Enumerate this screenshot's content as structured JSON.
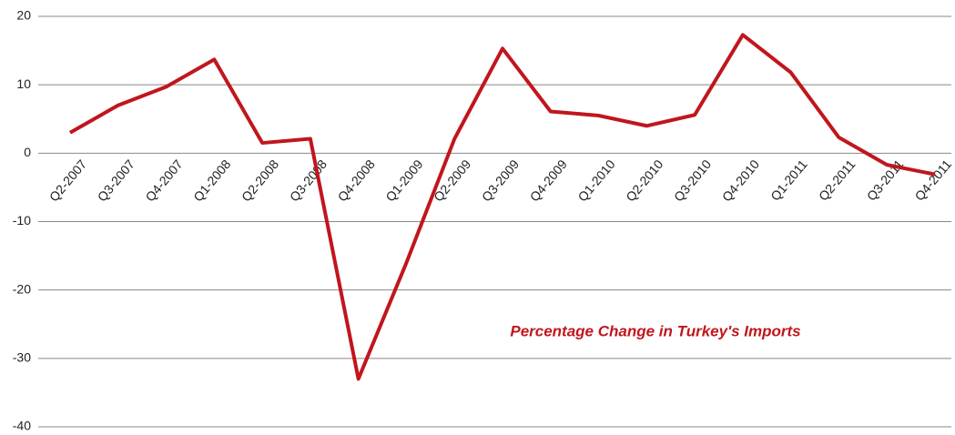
{
  "chart_data": {
    "type": "line",
    "title": "Percentage Change in Turkey's Imports",
    "categories": [
      "Q2-2007",
      "Q3-2007",
      "Q4-2007",
      "Q1-2008",
      "Q2-2008",
      "Q3-2008",
      "Q4-2008",
      "Q1-2009",
      "Q2-2009",
      "Q3-2009",
      "Q4-2009",
      "Q1-2010",
      "Q2-2010",
      "Q3-2010",
      "Q4-2010",
      "Q1-2011",
      "Q2-2011",
      "Q3-2011",
      "Q4-2011"
    ],
    "series": [
      {
        "color": "#c0161d",
        "values": [
          3,
          7,
          9.7,
          13.7,
          1.5,
          2.1,
          -33,
          -16,
          2.1,
          15.3,
          6.1,
          5.5,
          4,
          5.6,
          17.3,
          11.8,
          2.3,
          -1.7,
          -3.1
        ]
      }
    ],
    "ylim": [
      -40,
      20
    ],
    "yticks": [
      -40,
      -30,
      -20,
      -10,
      0,
      10,
      20
    ],
    "grid": true
  }
}
